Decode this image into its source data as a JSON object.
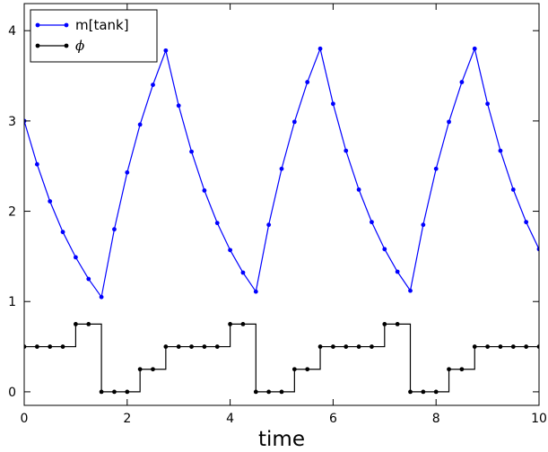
{
  "chart_data": {
    "type": "line",
    "title": "",
    "xlabel": "time",
    "ylabel": "",
    "xlim": [
      0,
      10
    ],
    "ylim": [
      -0.15,
      4.3
    ],
    "xticks": [
      0,
      2,
      4,
      6,
      8,
      10
    ],
    "yticks": [
      0,
      1,
      2,
      3,
      4
    ],
    "xtick_labels": [
      "0",
      "2",
      "4",
      "6",
      "8",
      "10"
    ],
    "ytick_labels": [
      "0",
      "1",
      "2",
      "3",
      "4"
    ],
    "grid": false,
    "legend_position": "top-left",
    "series": [
      {
        "name": "m[tank]",
        "color": "#0000ff",
        "style": "line-with-dots",
        "x": [
          0,
          0.25,
          0.5,
          0.75,
          1,
          1.25,
          1.5,
          1.75,
          2,
          2.25,
          2.5,
          2.75,
          3,
          3.25,
          3.5,
          3.75,
          4,
          4.25,
          4.5,
          4.75,
          5,
          5.25,
          5.5,
          5.75,
          6,
          6.25,
          6.5,
          6.75,
          7,
          7.25,
          7.5,
          7.75,
          8,
          8.25,
          8.5,
          8.75,
          9,
          9.25,
          9.5,
          9.75,
          10
        ],
        "y": [
          3.0,
          2.52,
          2.11,
          1.77,
          1.49,
          1.25,
          1.05,
          1.8,
          2.43,
          2.96,
          3.4,
          3.78,
          3.17,
          2.66,
          2.23,
          1.87,
          1.57,
          1.32,
          1.11,
          1.85,
          2.47,
          2.99,
          3.43,
          3.8,
          3.19,
          2.67,
          2.24,
          1.88,
          1.58,
          1.33,
          1.12,
          1.85,
          2.47,
          2.99,
          3.43,
          3.8,
          3.19,
          2.67,
          2.24,
          1.88,
          1.58
        ]
      },
      {
        "name": "ϕ",
        "color": "#000000",
        "style": "step-post-with-dots",
        "x": [
          0,
          0.25,
          0.5,
          0.75,
          1,
          1.25,
          1.5,
          1.75,
          2,
          2.25,
          2.5,
          2.75,
          3,
          3.25,
          3.5,
          3.75,
          4,
          4.25,
          4.5,
          4.75,
          5,
          5.25,
          5.5,
          5.75,
          6,
          6.25,
          6.5,
          6.75,
          7,
          7.25,
          7.5,
          7.75,
          8,
          8.25,
          8.5,
          8.75,
          9,
          9.25,
          9.5,
          9.75,
          10
        ],
        "y": [
          0.5,
          0.5,
          0.5,
          0.5,
          0.75,
          0.75,
          0,
          0,
          0,
          0.25,
          0.25,
          0.5,
          0.5,
          0.5,
          0.5,
          0.5,
          0.75,
          0.75,
          0,
          0,
          0,
          0.25,
          0.25,
          0.5,
          0.5,
          0.5,
          0.5,
          0.5,
          0.75,
          0.75,
          0,
          0,
          0,
          0.25,
          0.25,
          0.5,
          0.5,
          0.5,
          0.5,
          0.5,
          0.5
        ]
      }
    ]
  }
}
